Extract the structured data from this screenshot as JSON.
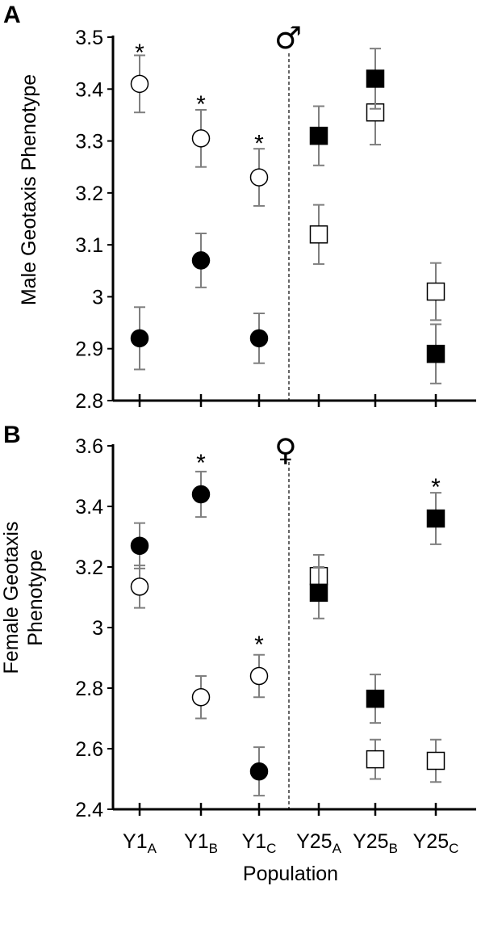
{
  "chart_data": [
    {
      "type": "scatter",
      "panel_label": "A",
      "sex_symbol": "♂",
      "ylabel": "Male Geotaxis Phenotype",
      "ylim": [
        2.8,
        3.5
      ],
      "yticks": [
        2.8,
        2.9,
        3,
        3.1,
        3.2,
        3.3,
        3.4,
        3.5
      ],
      "ytick_labels": [
        "2.8",
        "2.9",
        "3",
        "3.1",
        "3.2",
        "3.3",
        "3.4",
        "3.5"
      ],
      "categories": [
        "Y1A",
        "Y1B",
        "Y1C",
        "Y25A",
        "Y25B",
        "Y25C"
      ],
      "divider_between": [
        2,
        3
      ],
      "series": [
        {
          "marker": "circle",
          "fill": "#ffffff",
          "categories": [
            0,
            1,
            2
          ],
          "values": [
            3.41,
            3.305,
            3.23
          ],
          "errors": [
            0.055,
            0.055,
            0.055
          ]
        },
        {
          "marker": "circle",
          "fill": "#000000",
          "categories": [
            0,
            1,
            2
          ],
          "values": [
            2.92,
            3.07,
            2.92
          ],
          "errors": [
            0.06,
            0.052,
            0.048
          ]
        },
        {
          "marker": "square",
          "fill": "#ffffff",
          "categories": [
            3,
            4,
            5
          ],
          "values": [
            3.12,
            3.355,
            3.01
          ],
          "errors": [
            0.057,
            0.062,
            0.055
          ]
        },
        {
          "marker": "square",
          "fill": "#000000",
          "categories": [
            3,
            4,
            5
          ],
          "values": [
            3.31,
            3.42,
            2.89
          ],
          "errors": [
            0.057,
            0.058,
            0.057
          ]
        }
      ],
      "annotations": [
        {
          "text": "*",
          "category": 0,
          "y": 3.48
        },
        {
          "text": "*",
          "category": 1,
          "y": 3.38
        },
        {
          "text": "*",
          "category": 2,
          "y": 3.305
        }
      ]
    },
    {
      "type": "scatter",
      "panel_label": "B",
      "sex_symbol": "♀",
      "ylabel": [
        "Female Geotaxis",
        "Phenotype"
      ],
      "xlabel": "Population",
      "ylim": [
        2.4,
        3.6
      ],
      "yticks": [
        2.4,
        2.6,
        2.8,
        3,
        3.2,
        3.4,
        3.6
      ],
      "ytick_labels": [
        "2.4",
        "2.6",
        "2.8",
        "3",
        "3.2",
        "3.4",
        "3.6"
      ],
      "categories": [
        "Y1A",
        "Y1B",
        "Y1C",
        "Y25A",
        "Y25B",
        "Y25C"
      ],
      "category_labels": [
        {
          "main": "Y1",
          "sub": "A"
        },
        {
          "main": "Y1",
          "sub": "B"
        },
        {
          "main": "Y1",
          "sub": "C"
        },
        {
          "main": "Y25",
          "sub": "A"
        },
        {
          "main": "Y25",
          "sub": "B"
        },
        {
          "main": "Y25",
          "sub": "C"
        }
      ],
      "divider_between": [
        2,
        3
      ],
      "series": [
        {
          "marker": "circle",
          "fill": "#ffffff",
          "categories": [
            0,
            1,
            2
          ],
          "values": [
            3.135,
            2.77,
            2.84
          ],
          "errors": [
            0.07,
            0.07,
            0.07
          ]
        },
        {
          "marker": "circle",
          "fill": "#000000",
          "categories": [
            0,
            1,
            2
          ],
          "values": [
            3.27,
            3.44,
            2.525
          ],
          "errors": [
            0.075,
            0.075,
            0.08
          ]
        },
        {
          "marker": "square",
          "fill": "#ffffff",
          "categories": [
            3,
            4,
            5
          ],
          "values": [
            3.17,
            2.565,
            2.56
          ],
          "errors": [
            0.07,
            0.065,
            0.07
          ]
        },
        {
          "marker": "square",
          "fill": "#000000",
          "categories": [
            3,
            4,
            5
          ],
          "values": [
            3.115,
            2.765,
            3.36
          ],
          "errors": [
            0.085,
            0.08,
            0.085
          ]
        }
      ],
      "annotations": [
        {
          "text": "*",
          "category": 1,
          "y": 3.56
        },
        {
          "text": "*",
          "category": 2,
          "y": 2.96
        },
        {
          "text": "*",
          "category": 5,
          "y": 3.48
        }
      ]
    }
  ]
}
